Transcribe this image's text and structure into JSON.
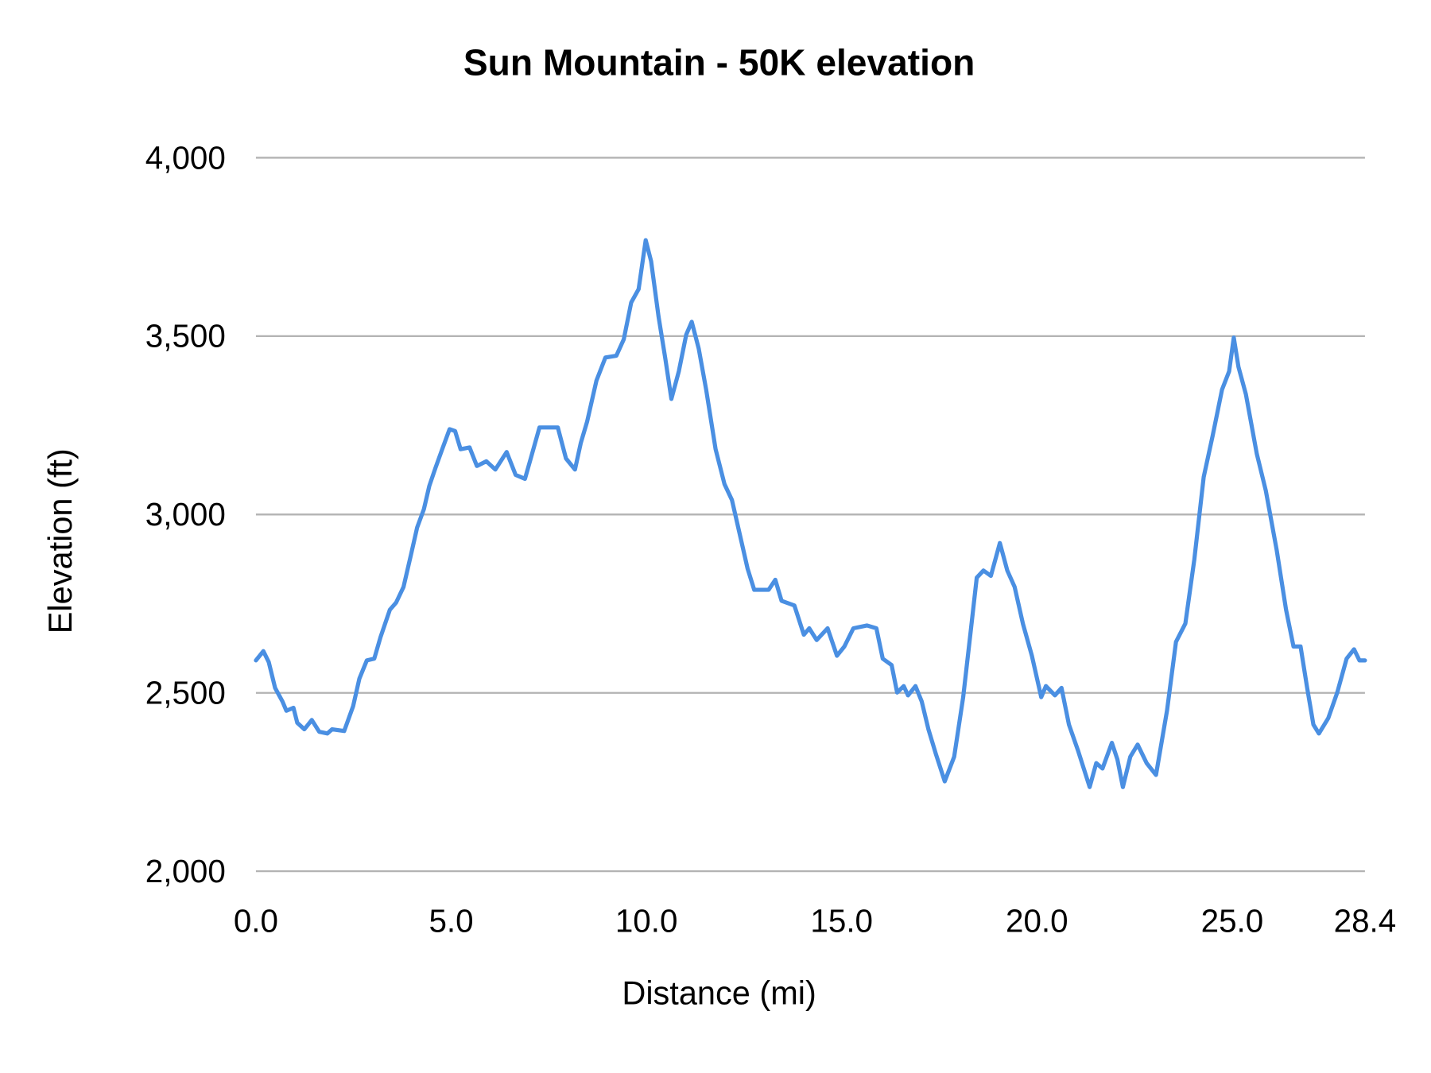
{
  "chart_data": {
    "type": "line",
    "title": "Sun Mountain - 50K elevation",
    "xlabel": "Distance (mi)",
    "ylabel": "Elevation (ft)",
    "xlim": [
      0,
      28.4
    ],
    "ylim": [
      2000,
      4000
    ],
    "x_ticks": [
      "0.0",
      "5.0",
      "10.0",
      "15.0",
      "20.0",
      "25.0",
      "28.4"
    ],
    "x_tick_values": [
      0,
      5,
      10,
      15,
      20,
      25,
      28.4
    ],
    "y_ticks": [
      "2,000",
      "2,500",
      "3,000",
      "3,500",
      "4,000"
    ],
    "y_tick_values": [
      2000,
      2500,
      3000,
      3500,
      4000
    ],
    "grid": "horizontal",
    "legend": "none",
    "line_color": "#4a8fe2",
    "grid_color": "#b3b3b3",
    "series": [
      {
        "x": [
          0,
          0.19,
          0.33,
          0.49,
          0.68,
          0.78,
          0.96,
          1.06,
          1.24,
          1.43,
          1.62,
          1.83,
          1.95,
          2.26,
          2.49,
          2.65,
          2.84,
          3.03,
          3.19,
          3.43,
          3.59,
          3.78,
          3.97,
          4.13,
          4.3,
          4.44,
          4.6,
          4.77,
          4.96,
          5.1,
          5.24,
          5.47,
          5.66,
          5.9,
          6.13,
          6.42,
          6.65,
          6.89,
          7.07,
          7.26,
          7.73,
          7.94,
          8.17,
          8.32,
          8.48,
          8.72,
          8.95,
          9.23,
          9.42,
          9.61,
          9.8,
          9.98,
          10.12,
          10.31,
          10.48,
          10.64,
          10.83,
          11.02,
          11.16,
          11.34,
          11.53,
          11.77,
          12.0,
          12.19,
          12.43,
          12.59,
          12.76,
          13.13,
          13.3,
          13.46,
          13.79,
          14.03,
          14.17,
          14.36,
          14.64,
          14.88,
          15.07,
          15.3,
          15.65,
          15.89,
          16.05,
          16.28,
          16.42,
          16.59,
          16.7,
          16.89,
          17.05,
          17.22,
          17.41,
          17.64,
          17.88,
          18.11,
          18.3,
          18.46,
          18.63,
          18.82,
          19.05,
          19.24,
          19.43,
          19.64,
          19.87,
          20.11,
          20.23,
          20.46,
          20.63,
          20.82,
          21.05,
          21.35,
          21.52,
          21.68,
          21.92,
          22.06,
          22.2,
          22.39,
          22.58,
          22.81,
          23.05,
          23.33,
          23.56,
          23.8,
          24.03,
          24.27,
          24.5,
          24.74,
          24.92,
          25.04,
          25.16,
          25.35,
          25.63,
          25.86,
          26.14,
          26.38,
          26.57,
          26.75,
          26.92,
          27.08,
          27.22,
          27.46,
          27.69,
          27.93,
          28.12,
          28.26,
          28.4
        ],
        "y": [
          2591,
          2617,
          2586,
          2514,
          2476,
          2450,
          2458,
          2416,
          2398,
          2424,
          2391,
          2386,
          2398,
          2393,
          2463,
          2540,
          2591,
          2596,
          2656,
          2733,
          2753,
          2797,
          2887,
          2964,
          3015,
          3080,
          3131,
          3183,
          3239,
          3234,
          3183,
          3188,
          3136,
          3149,
          3126,
          3175,
          3111,
          3100,
          3170,
          3244,
          3244,
          3157,
          3126,
          3201,
          3260,
          3375,
          3440,
          3445,
          3491,
          3594,
          3632,
          3769,
          3710,
          3555,
          3440,
          3324,
          3401,
          3504,
          3540,
          3465,
          3350,
          3183,
          3085,
          3041,
          2925,
          2848,
          2789,
          2789,
          2817,
          2758,
          2745,
          2663,
          2681,
          2648,
          2681,
          2604,
          2630,
          2681,
          2689,
          2681,
          2596,
          2578,
          2501,
          2519,
          2493,
          2519,
          2476,
          2398,
          2329,
          2252,
          2321,
          2488,
          2668,
          2823,
          2843,
          2828,
          2920,
          2843,
          2797,
          2694,
          2604,
          2488,
          2519,
          2493,
          2514,
          2411,
          2339,
          2236,
          2303,
          2288,
          2360,
          2314,
          2236,
          2321,
          2355,
          2303,
          2270,
          2450,
          2643,
          2694,
          2874,
          3105,
          3221,
          3350,
          3401,
          3496,
          3414,
          3337,
          3170,
          3067,
          2900,
          2733,
          2630,
          2630,
          2514,
          2411,
          2386,
          2429,
          2501,
          2596,
          2622,
          2591,
          2591
        ]
      }
    ]
  }
}
